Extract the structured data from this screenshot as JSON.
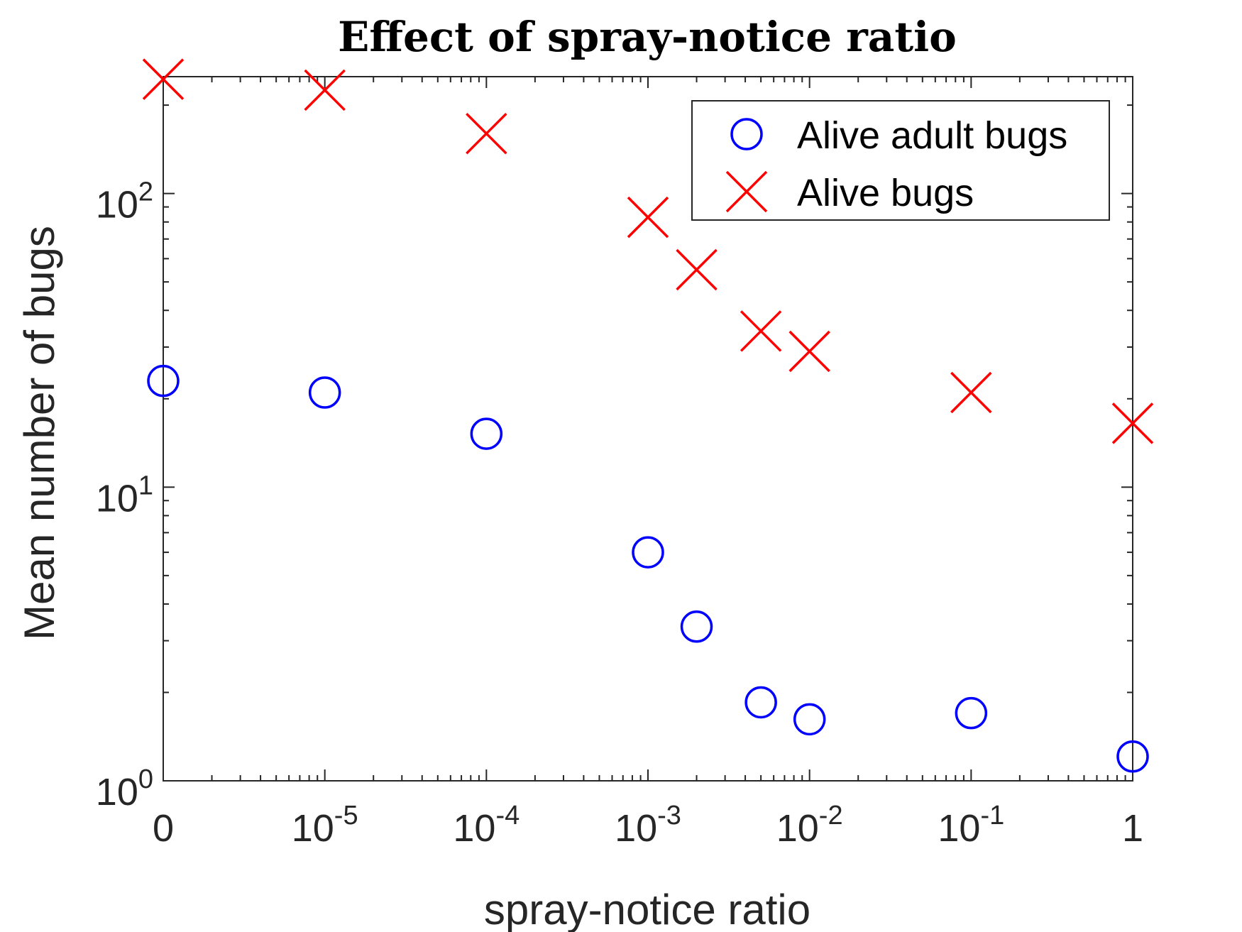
{
  "chart_data": {
    "type": "scatter",
    "title": "Effect of spray-notice ratio",
    "xlabel": "spray-notice ratio",
    "ylabel": "Mean number of bugs",
    "x_scale": "log",
    "y_scale": "log",
    "ylim": [
      1,
      250
    ],
    "grid": false,
    "legend_position": "top-right",
    "x_tick_labels": [
      {
        "value": 0,
        "base": "0",
        "exp": ""
      },
      {
        "value": 1e-05,
        "base": "10",
        "exp": "-5"
      },
      {
        "value": 0.0001,
        "base": "10",
        "exp": "-4"
      },
      {
        "value": 0.001,
        "base": "10",
        "exp": "-3"
      },
      {
        "value": 0.01,
        "base": "10",
        "exp": "-2"
      },
      {
        "value": 0.1,
        "base": "10",
        "exp": "-1"
      },
      {
        "value": 1,
        "base": "1",
        "exp": ""
      }
    ],
    "y_tick_labels": [
      {
        "value": 1,
        "base": "10",
        "exp": "0"
      },
      {
        "value": 10,
        "base": "10",
        "exp": "1"
      },
      {
        "value": 100,
        "base": "10",
        "exp": "2"
      }
    ],
    "series": [
      {
        "name": "Alive adult bugs",
        "marker": "circle",
        "color": "#0000ff",
        "points": [
          {
            "x": 0,
            "y": 23
          },
          {
            "x": 1e-05,
            "y": 21
          },
          {
            "x": 0.0001,
            "y": 15.2
          },
          {
            "x": 0.001,
            "y": 6.0
          },
          {
            "x": 0.002,
            "y": 3.35
          },
          {
            "x": 0.005,
            "y": 1.85
          },
          {
            "x": 0.01,
            "y": 1.62
          },
          {
            "x": 0.1,
            "y": 1.7
          },
          {
            "x": 1,
            "y": 1.21
          }
        ]
      },
      {
        "name": "Alive bugs",
        "marker": "x",
        "color": "#ff0000",
        "points": [
          {
            "x": 0,
            "y": 245
          },
          {
            "x": 1e-05,
            "y": 225
          },
          {
            "x": 0.0001,
            "y": 160
          },
          {
            "x": 0.001,
            "y": 83
          },
          {
            "x": 0.002,
            "y": 55
          },
          {
            "x": 0.005,
            "y": 34
          },
          {
            "x": 0.01,
            "y": 29
          },
          {
            "x": 0.1,
            "y": 21
          },
          {
            "x": 1,
            "y": 16.5
          }
        ]
      }
    ]
  }
}
